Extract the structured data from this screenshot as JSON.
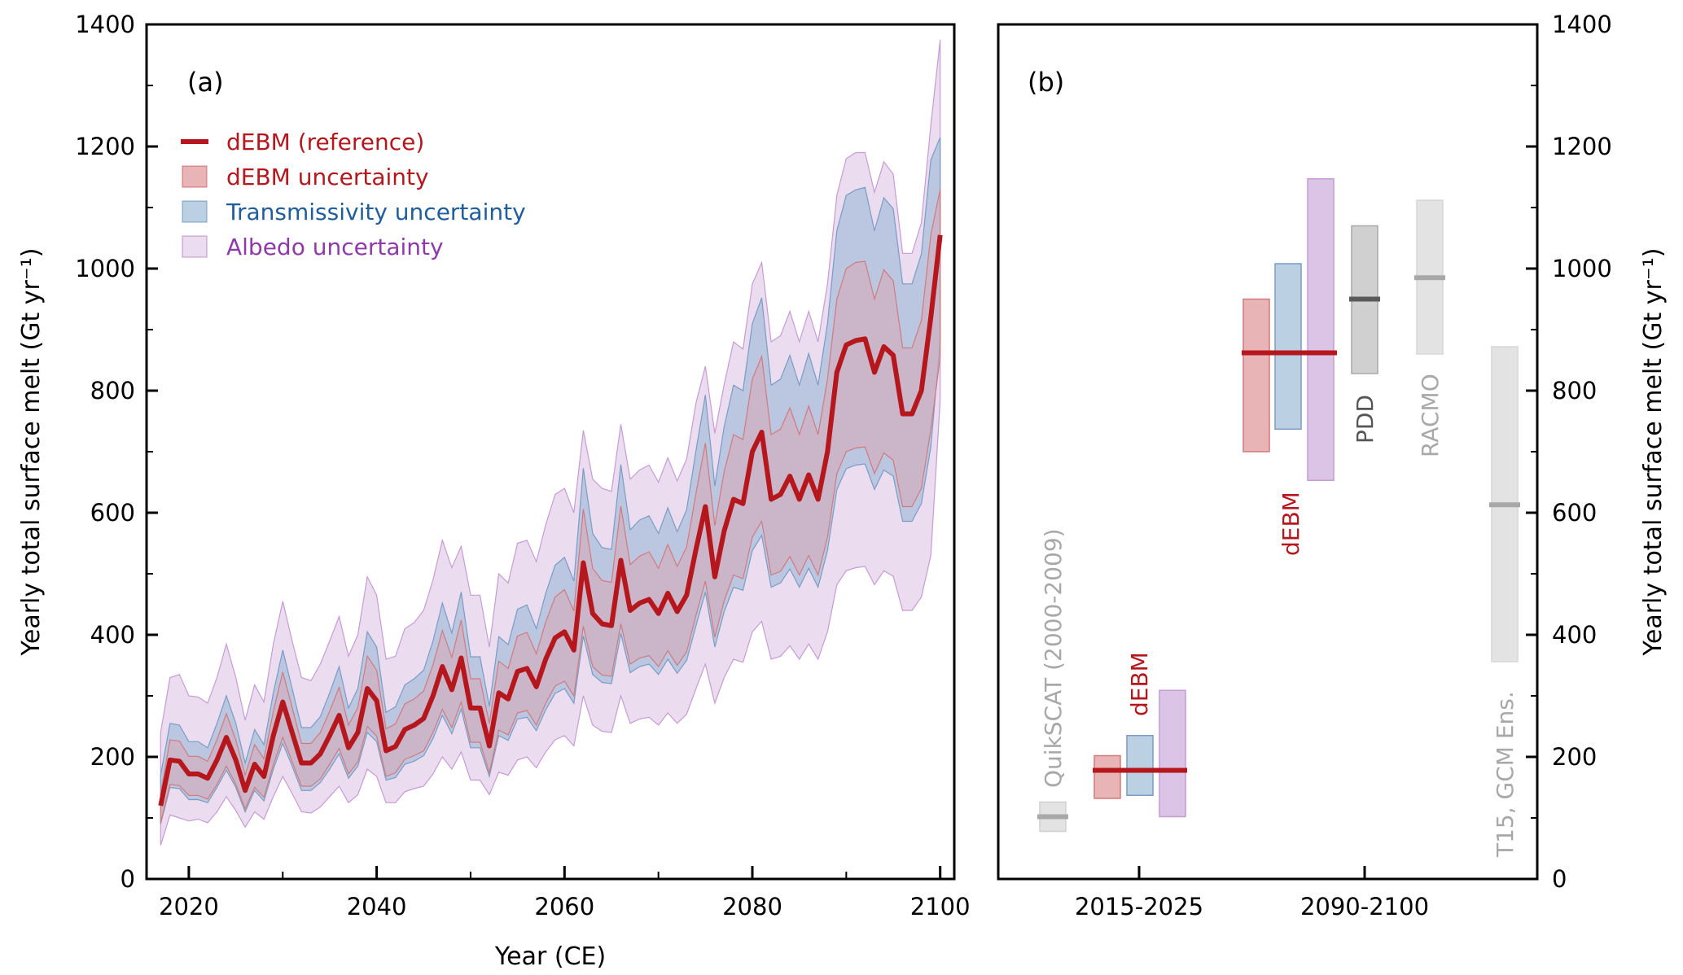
{
  "chart_data": [
    {
      "type": "line",
      "panel_label": "(a)",
      "xlabel": "Year (CE)",
      "ylabel": "Yearly total surface melt (Gt yr⁻¹)",
      "xlim": [
        2015.5,
        2101.5
      ],
      "ylim": [
        0,
        1400
      ],
      "xticks": [
        2020,
        2040,
        2060,
        2080,
        2100
      ],
      "xticks_minor": [
        2030,
        2050,
        2070,
        2090
      ],
      "yticks": [
        0,
        200,
        400,
        600,
        800,
        1000,
        1200,
        1400
      ],
      "yticks_minor": [
        100,
        300,
        500,
        700,
        900,
        1100,
        1300
      ],
      "legend_position": "upper-left",
      "x": [
        2017,
        2018,
        2019,
        2020,
        2021,
        2022,
        2023,
        2024,
        2025,
        2026,
        2027,
        2028,
        2029,
        2030,
        2031,
        2032,
        2033,
        2034,
        2035,
        2036,
        2037,
        2038,
        2039,
        2040,
        2041,
        2042,
        2043,
        2044,
        2045,
        2046,
        2047,
        2048,
        2049,
        2050,
        2051,
        2052,
        2053,
        2054,
        2055,
        2056,
        2057,
        2058,
        2059,
        2060,
        2061,
        2062,
        2063,
        2064,
        2065,
        2066,
        2067,
        2068,
        2069,
        2070,
        2071,
        2072,
        2073,
        2074,
        2075,
        2076,
        2077,
        2078,
        2079,
        2080,
        2081,
        2082,
        2083,
        2084,
        2085,
        2086,
        2087,
        2088,
        2089,
        2090,
        2091,
        2092,
        2093,
        2094,
        2095,
        2096,
        2097,
        2098,
        2099,
        2100
      ],
      "series": [
        {
          "name": "Albedo uncertainty",
          "kind": "band",
          "color": "#9b59b6",
          "lower": [
            55,
            105,
            100,
            95,
            98,
            92,
            110,
            135,
            112,
            85,
            110,
            98,
            135,
            168,
            140,
            110,
            108,
            118,
            135,
            152,
            125,
            138,
            180,
            168,
            125,
            125,
            143,
            148,
            152,
            172,
            200,
            180,
            208,
            162,
            162,
            138,
            175,
            170,
            195,
            200,
            182,
            208,
            228,
            235,
            218,
            300,
            252,
            242,
            240,
            300,
            255,
            262,
            265,
            252,
            272,
            255,
            270,
            312,
            352,
            288,
            330,
            360,
            355,
            405,
            422,
            360,
            365,
            382,
            360,
            385,
            360,
            405,
            482,
            505,
            510,
            512,
            482,
            505,
            496,
            440,
            440,
            462,
            530,
            785
          ],
          "upper": [
            240,
            330,
            335,
            300,
            298,
            288,
            330,
            385,
            330,
            260,
            318,
            290,
            385,
            455,
            390,
            330,
            325,
            352,
            390,
            430,
            365,
            400,
            495,
            465,
            360,
            365,
            410,
            420,
            440,
            490,
            555,
            510,
            545,
            465,
            465,
            380,
            500,
            485,
            550,
            555,
            520,
            580,
            630,
            640,
            600,
            735,
            655,
            640,
            635,
            745,
            655,
            670,
            678,
            650,
            690,
            652,
            688,
            780,
            840,
            730,
            810,
            880,
            868,
            975,
            1010,
            880,
            890,
            930,
            880,
            930,
            880,
            975,
            1120,
            1180,
            1190,
            1190,
            1125,
            1175,
            1155,
            1025,
            1025,
            1075,
            1235,
            1375
          ]
        },
        {
          "name": "Transmissivity uncertainty",
          "kind": "band",
          "color": "#4a7fb5",
          "lower": [
            90,
            150,
            148,
            130,
            130,
            125,
            150,
            178,
            150,
            110,
            145,
            128,
            180,
            222,
            185,
            145,
            145,
            158,
            180,
            205,
            165,
            185,
            240,
            225,
            162,
            166,
            188,
            193,
            202,
            230,
            268,
            238,
            278,
            215,
            215,
            168,
            235,
            227,
            262,
            265,
            243,
            277,
            304,
            312,
            288,
            398,
            335,
            322,
            320,
            402,
            338,
            348,
            352,
            335,
            360,
            337,
            358,
            415,
            470,
            380,
            438,
            478,
            473,
            538,
            563,
            478,
            485,
            508,
            478,
            509,
            478,
            538,
            638,
            672,
            678,
            680,
            638,
            670,
            660,
            586,
            586,
            615,
            708,
            880
          ],
          "upper": [
            170,
            255,
            252,
            225,
            225,
            215,
            255,
            300,
            255,
            190,
            245,
            220,
            305,
            375,
            312,
            248,
            248,
            266,
            305,
            348,
            280,
            312,
            405,
            380,
            273,
            282,
            318,
            328,
            342,
            390,
            452,
            403,
            470,
            364,
            364,
            283,
            397,
            384,
            442,
            449,
            410,
            468,
            514,
            527,
            488,
            673,
            566,
            543,
            540,
            679,
            572,
            588,
            595,
            566,
            608,
            569,
            605,
            702,
            793,
            644,
            741,
            809,
            800,
            910,
            952,
            809,
            819,
            858,
            809,
            861,
            809,
            910,
            1062,
            1120,
            1129,
            1133,
            1062,
            1116,
            1098,
            975,
            975,
            1024,
            1178,
            1215
          ]
        },
        {
          "name": "dEBM uncertainty",
          "kind": "band",
          "color": "#d9534f",
          "lower": [
            92,
            155,
            153,
            137,
            137,
            131,
            155,
            185,
            155,
            115,
            150,
            134,
            187,
            232,
            192,
            152,
            152,
            164,
            188,
            214,
            172,
            192,
            250,
            234,
            168,
            174,
            196,
            202,
            210,
            240,
            278,
            248,
            290,
            224,
            224,
            174,
            244,
            236,
            272,
            276,
            252,
            288,
            316,
            324,
            300,
            414,
            348,
            334,
            332,
            418,
            352,
            362,
            366,
            348,
            374,
            350,
            372,
            432,
            488,
            396,
            456,
            498,
            492,
            560,
            586,
            498,
            504,
            528,
            498,
            530,
            498,
            560,
            664,
            700,
            706,
            708,
            664,
            698,
            686,
            610,
            610,
            640,
            736,
            855
          ],
          "upper": [
            140,
            228,
            226,
            201,
            201,
            193,
            228,
            271,
            228,
            170,
            220,
            197,
            275,
            339,
            281,
            222,
            222,
            240,
            275,
            314,
            252,
            281,
            365,
            342,
            246,
            254,
            287,
            295,
            308,
            351,
            407,
            363,
            424,
            328,
            328,
            255,
            357,
            345,
            398,
            404,
            369,
            421,
            462,
            474,
            439,
            606,
            509,
            489,
            486,
            611,
            515,
            529,
            536,
            509,
            548,
            512,
            544,
            632,
            714,
            579,
            667,
            728,
            720,
            819,
            856,
            728,
            737,
            772,
            728,
            775,
            728,
            819,
            950,
            1000,
            1010,
            1012,
            950,
            998,
            980,
            870,
            870,
            915,
            1055,
            1130
          ]
        },
        {
          "name": "dEBM (reference)",
          "kind": "line",
          "color": "#b5171d",
          "values": [
            120,
            195,
            193,
            172,
            172,
            165,
            195,
            232,
            195,
            145,
            188,
            168,
            235,
            290,
            240,
            190,
            190,
            205,
            235,
            268,
            215,
            240,
            312,
            292,
            210,
            217,
            245,
            252,
            263,
            300,
            348,
            310,
            362,
            280,
            280,
            218,
            305,
            295,
            340,
            345,
            315,
            360,
            395,
            405,
            375,
            518,
            435,
            418,
            415,
            522,
            440,
            452,
            458,
            435,
            468,
            438,
            465,
            540,
            610,
            495,
            570,
            622,
            615,
            700,
            732,
            622,
            630,
            660,
            622,
            662,
            622,
            700,
            830,
            875,
            882,
            885,
            830,
            872,
            858,
            762,
            762,
            800,
            920,
            1055
          ]
        }
      ],
      "legend": [
        {
          "label": "dEBM (reference)",
          "color": "#b5171d",
          "text_color": "#b5171d",
          "kind": "line"
        },
        {
          "label": "dEBM uncertainty",
          "color": "#e8b4b6",
          "text_color": "#b5171d",
          "kind": "patch"
        },
        {
          "label": "Transmissivity uncertainty",
          "color": "#bcd0e3",
          "text_color": "#1f5d9c",
          "kind": "patch"
        },
        {
          "label": "Albedo uncertainty",
          "color": "#ebdcef",
          "text_color": "#8e3aa8",
          "kind": "patch"
        }
      ]
    },
    {
      "type": "bar",
      "panel_label": "(b)",
      "xlabel": "",
      "ylabel": "Yearly total surface melt (Gt yr⁻¹)",
      "ylim": [
        0,
        1400
      ],
      "yticks": [
        0,
        200,
        400,
        600,
        800,
        1000,
        1200,
        1400
      ],
      "categories": [
        "2015-2025",
        "2090-2100"
      ],
      "ranges": [
        {
          "name": "QuikSCAT (2000-2009)",
          "group": "obs",
          "low": 78,
          "high": 126,
          "median": 102,
          "color": "#e3e3e3",
          "median_color": "#a8a8a8",
          "label_color": "#a8a8a8"
        },
        {
          "name": "dEBM uncertainty",
          "group": "2015-2025",
          "low": 132,
          "high": 202,
          "color": "#e8b4b6"
        },
        {
          "name": "Transmissivity uncertainty",
          "group": "2015-2025",
          "low": 137,
          "high": 235,
          "color": "#bcd0e3"
        },
        {
          "name": "Albedo uncertainty",
          "group": "2015-2025",
          "low": 102,
          "high": 309,
          "color": "#dcc4e6"
        },
        {
          "name": "dEBM uncertainty",
          "group": "2090-2100",
          "low": 700,
          "high": 950,
          "color": "#e8b4b6"
        },
        {
          "name": "Transmissivity uncertainty",
          "group": "2090-2100",
          "low": 737,
          "high": 1008,
          "color": "#bcd0e3"
        },
        {
          "name": "Albedo uncertainty",
          "group": "2090-2100",
          "low": 653,
          "high": 1147,
          "color": "#dcc4e6"
        },
        {
          "name": "PDD",
          "group": "2090-2100",
          "low": 828,
          "high": 1070,
          "median": 950,
          "color": "#d0d0d0",
          "median_color": "#5a5a5a",
          "label_color": "#555555"
        },
        {
          "name": "RACMO",
          "group": "2090-2100",
          "low": 860,
          "high": 1112,
          "median": 985,
          "color": "#e3e3e3",
          "median_color": "#a8a8a8",
          "label_color": "#a8a8a8"
        },
        {
          "name": "T15, GCM Ens.",
          "group": "2090-2100",
          "low": 356,
          "high": 872,
          "median": 613,
          "color": "#e3e3e3",
          "median_color": "#a8a8a8",
          "label_color": "#a8a8a8"
        }
      ],
      "reference_lines": [
        {
          "name": "dEBM",
          "group": "2015-2025",
          "value": 178,
          "color": "#b5171d"
        },
        {
          "name": "dEBM",
          "group": "2090-2100",
          "value": 862,
          "color": "#b5171d"
        }
      ],
      "annotations": [
        {
          "text": "dEBM",
          "color": "#b5171d",
          "group": "2015-2025"
        },
        {
          "text": "dEBM",
          "color": "#b5171d",
          "group": "2090-2100"
        }
      ]
    }
  ]
}
